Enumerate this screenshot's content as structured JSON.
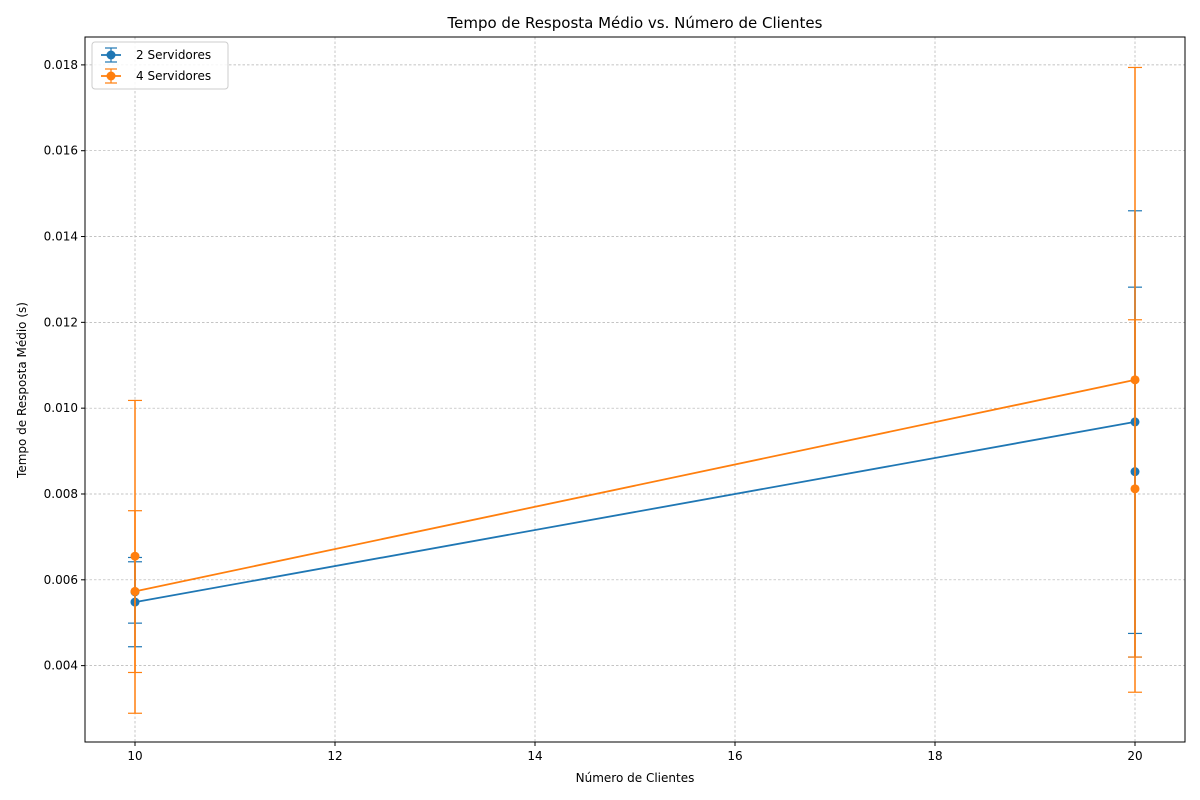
{
  "chart_data": {
    "type": "line",
    "title": "Tempo de Resposta Médio vs. Número de Clientes",
    "xlabel": "Número de Clientes",
    "ylabel": "Tempo de Resposta Médio (s)",
    "xlim": [
      9.5,
      20.5
    ],
    "ylim": [
      0.00222,
      0.01865
    ],
    "x_ticks": [
      10,
      12,
      14,
      16,
      18,
      20
    ],
    "x_tick_labels": [
      "10",
      "12",
      "14",
      "16",
      "18",
      "20"
    ],
    "y_ticks": [
      0.004,
      0.006,
      0.008,
      0.01,
      0.012,
      0.014,
      0.016,
      0.018
    ],
    "y_tick_labels": [
      "0.004",
      "0.006",
      "0.008",
      "0.010",
      "0.012",
      "0.014",
      "0.016",
      "0.018"
    ],
    "grid": true,
    "legend_position": "top-left",
    "series": [
      {
        "name": "2 Servidores",
        "color": "#1f77b4",
        "x": [
          10,
          20
        ],
        "y": [
          0.00548,
          0.00968
        ],
        "yerr_low": [
          0.00444,
          0.00475
        ],
        "yerr_high": [
          0.00652,
          0.0146
        ],
        "extra_points": [
          {
            "x": 10,
            "y": 0.00572,
            "low": 0.00499,
            "high": 0.00642
          },
          {
            "x": 20,
            "y": 0.00852,
            "low": 0.0042,
            "high": 0.01282
          }
        ]
      },
      {
        "name": "4 Servidores",
        "color": "#ff7f0e",
        "x": [
          10,
          20
        ],
        "y": [
          0.00573,
          0.01066
        ],
        "yerr_low": [
          0.00289,
          0.00338
        ],
        "yerr_high": [
          0.01018,
          0.01794
        ],
        "extra_points": [
          {
            "x": 10,
            "y": 0.00655,
            "low": 0.00384,
            "high": 0.00761
          },
          {
            "x": 20,
            "y": 0.00812,
            "low": 0.0042,
            "high": 0.01206
          }
        ]
      }
    ]
  }
}
